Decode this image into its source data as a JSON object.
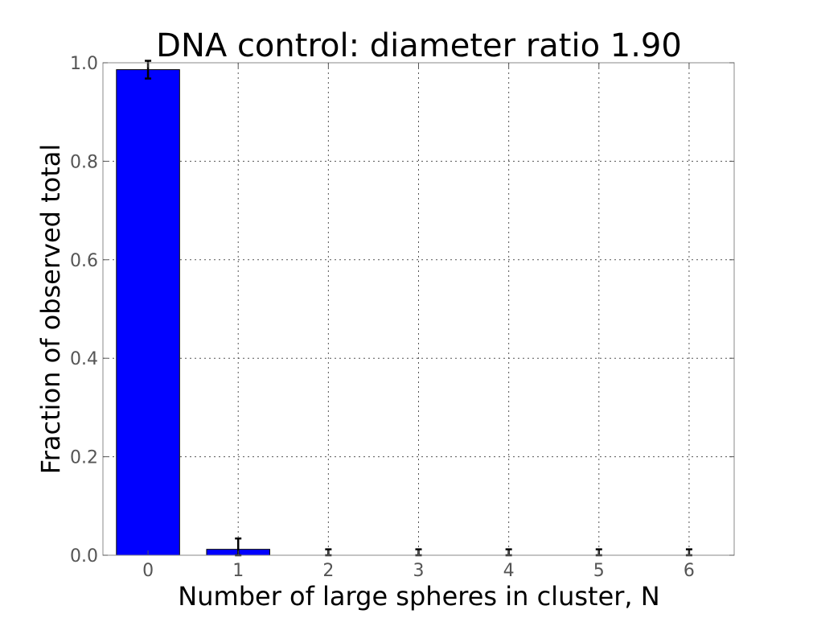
{
  "chart_data": {
    "type": "bar",
    "title": "DNA control: diameter ratio 1.90",
    "xlabel": "Number of large spheres in cluster, N",
    "ylabel": "Fraction of observed total",
    "categories": [
      "0",
      "1",
      "2",
      "3",
      "4",
      "5",
      "6"
    ],
    "values": [
      0.986,
      0.012,
      0.0,
      0.0,
      0.0,
      0.0,
      0.0
    ],
    "errors": [
      0.018,
      0.022,
      0.012,
      0.012,
      0.012,
      0.012,
      0.012
    ],
    "ylim": [
      0.0,
      1.0
    ],
    "yticks": [
      "0.0",
      "0.2",
      "0.4",
      "0.6",
      "0.8",
      "1.0"
    ],
    "grid": true,
    "colors": {
      "bar": "#0000ff",
      "error_bar": "#000000"
    }
  }
}
